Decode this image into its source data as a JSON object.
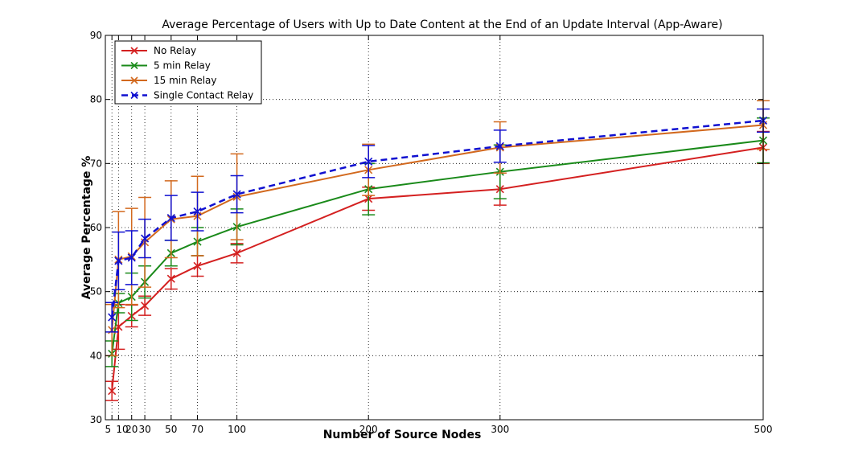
{
  "chart_data": {
    "type": "line",
    "title": "Average Percentage of Users with Up to Date Content at the End of an Update Interval (App-Aware)",
    "xlabel": "Number of Source Nodes",
    "ylabel": "Average Percentage %",
    "x": [
      5,
      10,
      20,
      30,
      50,
      70,
      100,
      200,
      300,
      500
    ],
    "xlim": [
      0,
      500
    ],
    "ylim": [
      30,
      90
    ],
    "yticks": [
      30,
      40,
      50,
      60,
      70,
      80,
      90
    ],
    "grid": true,
    "legend_position": "top-left",
    "series": [
      {
        "name": "No Relay",
        "color": "#d42020",
        "dash": false,
        "values": [
          34.5,
          44.5,
          46.2,
          47.8,
          52.0,
          54.0,
          56.0,
          64.5,
          66.0,
          72.5
        ],
        "error": [
          1.5,
          3.5,
          1.7,
          1.5,
          1.6,
          1.6,
          1.5,
          1.8,
          2.5,
          2.5
        ]
      },
      {
        "name": "5 min Relay",
        "color": "#1a8a1a",
        "dash": false,
        "values": [
          40.3,
          48.2,
          49.2,
          51.5,
          56.0,
          57.8,
          60.1,
          66.0,
          68.7,
          73.6
        ],
        "error": [
          2.0,
          1.5,
          3.7,
          2.5,
          2.0,
          2.2,
          2.8,
          4.0,
          4.2,
          3.5
        ]
      },
      {
        "name": "15 min Relay",
        "color": "#d2691e",
        "dash": false,
        "values": [
          44.0,
          55.0,
          55.5,
          57.7,
          61.3,
          61.8,
          64.8,
          69.0,
          72.5,
          76.0
        ],
        "error": [
          4.0,
          7.5,
          7.5,
          7.0,
          6.0,
          6.2,
          6.7,
          4.0,
          4.0,
          3.8
        ]
      },
      {
        "name": "Single Contact Relay",
        "color": "#1010d0",
        "dash": true,
        "values": [
          46.0,
          54.8,
          55.3,
          58.3,
          61.5,
          62.5,
          65.2,
          70.3,
          72.7,
          76.7
        ],
        "error": [
          2.3,
          4.5,
          4.2,
          3.0,
          3.5,
          3.0,
          2.9,
          2.5,
          2.5,
          1.8
        ]
      }
    ]
  }
}
